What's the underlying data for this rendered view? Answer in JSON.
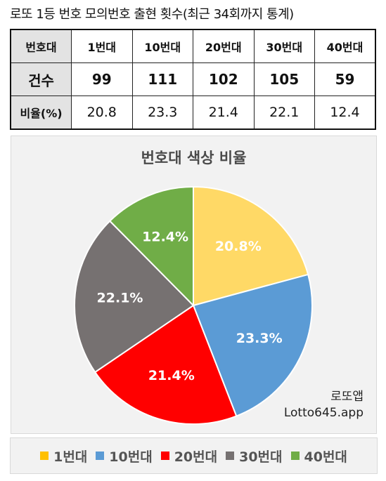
{
  "header": {
    "title": "로또 1등 번호 모의번호 출현 횟수(최근 34회까지 통계)"
  },
  "table": {
    "columns": [
      "번호대",
      "1번대",
      "10번대",
      "20번대",
      "30번대",
      "40번대"
    ],
    "rows": [
      {
        "label": "건수",
        "cells": [
          "99",
          "111",
          "102",
          "105",
          "59"
        ]
      },
      {
        "label": "비율(%)",
        "cells": [
          "20.8",
          "23.3",
          "21.4",
          "22.1",
          "12.4"
        ]
      }
    ]
  },
  "chart_data": {
    "type": "pie",
    "title": "번호대 색상 비율",
    "categories": [
      "1번대",
      "10번대",
      "20번대",
      "30번대",
      "40번대"
    ],
    "values": [
      20.8,
      23.3,
      21.4,
      22.1,
      12.4
    ],
    "labels": [
      "20.8%",
      "23.3%",
      "21.4%",
      "22.1%",
      "12.4%"
    ],
    "colors": [
      "#FFD966",
      "#5B9BD5",
      "#FF0000",
      "#767171",
      "#70AD47"
    ],
    "start_angle": "12 o'clock, clockwise",
    "legend_position": "bottom"
  },
  "watermark": {
    "line1": "로또앱",
    "line2": "Lotto645.app"
  },
  "legend": {
    "items": [
      {
        "label": "1번대",
        "color": "#FFC000"
      },
      {
        "label": "10번대",
        "color": "#5B9BD5"
      },
      {
        "label": "20번대",
        "color": "#FF0000"
      },
      {
        "label": "30번대",
        "color": "#767171"
      },
      {
        "label": "40번대",
        "color": "#70AD47"
      }
    ]
  }
}
